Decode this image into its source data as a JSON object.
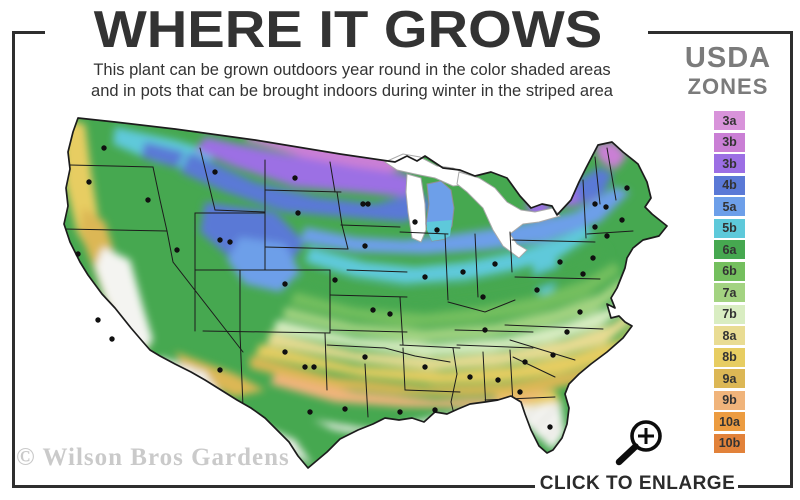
{
  "header": {
    "title": "WHERE IT GROWS",
    "subtitle_line1": "This plant can be grown outdoors year round in the color shaded areas",
    "subtitle_line2": "and in pots that can be brought indoors during winter in the striped area"
  },
  "legend": {
    "title_line1": "USDA",
    "title_line2": "ZONES",
    "zones": [
      {
        "label": "3a",
        "color": "#d893da"
      },
      {
        "label": "3b",
        "color": "#ca7fd5"
      },
      {
        "label": "3b",
        "color": "#9c6fe4"
      },
      {
        "label": "4b",
        "color": "#5a79d6"
      },
      {
        "label": "5a",
        "color": "#6d9fe9"
      },
      {
        "label": "5b",
        "color": "#5ec9da"
      },
      {
        "label": "6a",
        "color": "#46a850"
      },
      {
        "label": "6b",
        "color": "#74bf5e"
      },
      {
        "label": "7a",
        "color": "#a3d381"
      },
      {
        "label": "7b",
        "color": "#d9edc2"
      },
      {
        "label": "8a",
        "color": "#e9dc93"
      },
      {
        "label": "8b",
        "color": "#e7cd62"
      },
      {
        "label": "9a",
        "color": "#dcb755"
      },
      {
        "label": "9b",
        "color": "#f0b47b"
      },
      {
        "label": "10a",
        "color": "#ec9c41"
      },
      {
        "label": "10b",
        "color": "#e2823a"
      }
    ]
  },
  "map": {
    "description": "USDA plant hardiness zone map of the contiguous United States with black city markers; white striped areas mark zones where the plant must overwinter indoors",
    "no_grow_color": "#f4f4f1",
    "stripe_color": "#e9e9e4",
    "border_color": "#1c1c1c",
    "city_marker_color": "#101010"
  },
  "footer": {
    "watermark": "© Wilson Bros Gardens",
    "enlarge_label": "CLICK TO ENLARGE"
  },
  "colors": {
    "title": "#333333",
    "subtitle": "#333333",
    "legend_title": "#7b7b7b",
    "frame": "#2e2e2e",
    "watermark": "#cacaca"
  }
}
